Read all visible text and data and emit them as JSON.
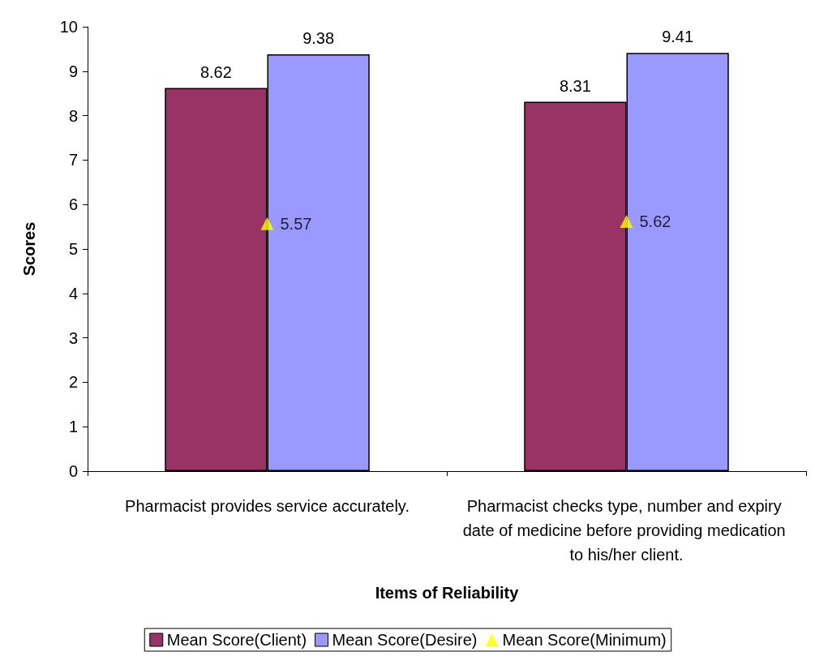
{
  "chart_data": {
    "type": "bar",
    "xlabel": "Items of Reliability",
    "ylabel": "Scores",
    "categories": [
      "Pharmacist provides service accurately.",
      "Pharmacist checks type, number and expiry date of medicine before providing medication to his/her client."
    ],
    "series": [
      {
        "name": "Mean Score(Client)",
        "color": "#993366",
        "values": [
          8.62,
          8.31
        ]
      },
      {
        "name": "Mean Score(Desire)",
        "color": "#9999ff",
        "values": [
          9.38,
          9.41
        ]
      },
      {
        "name": "Mean Score(Minimum)",
        "type": "scatter",
        "marker": "triangle",
        "color": "#ffff00",
        "x": [
          "Pharmacist provides service accurately.",
          "Pharmacist checks type, number and expiry date of medicine before providing medication to his/her client."
        ],
        "values": [
          5.57,
          5.62
        ]
      }
    ],
    "ylim": [
      0,
      10
    ],
    "yticks": [
      0,
      1,
      2,
      3,
      4,
      5,
      6,
      7,
      8,
      9,
      10
    ],
    "grid": false,
    "legend": "bottom",
    "data_labels": true
  }
}
